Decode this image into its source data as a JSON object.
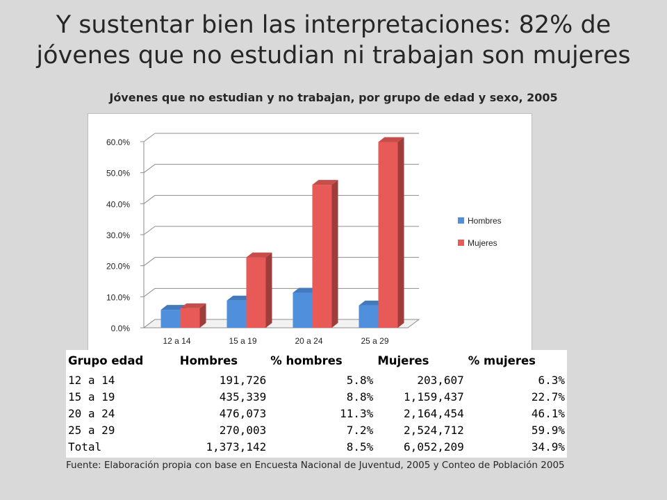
{
  "slide": {
    "title": "Y sustentar bien las interpretaciones: 82% de jóvenes que no estudian ni trabajan son mujeres",
    "chart_heading": "Jóvenes que no estudian y no trabajan, por grupo de edad y sexo, 2005",
    "source_note": "Fuente: Elaboración propia con base en Encuesta Nacional de Juventud, 2005 y Conteo de Población  2005"
  },
  "chart_data": {
    "type": "bar",
    "categories": [
      "12 a 14",
      "15 a 19",
      "20 a 24",
      "25 a 29"
    ],
    "series": [
      {
        "name": "Hombres",
        "values": [
          5.8,
          8.8,
          11.3,
          7.2
        ],
        "color": "#4f8fdc"
      },
      {
        "name": "Mujeres",
        "values": [
          6.3,
          22.7,
          46.1,
          59.9
        ],
        "color": "#e85a57"
      }
    ],
    "y_ticks": [
      "0.0%",
      "10.0%",
      "20.0%",
      "30.0%",
      "40.0%",
      "50.0%",
      "60.0%"
    ],
    "ylim": [
      0,
      60
    ],
    "grid": true,
    "legend": "right",
    "style": "3d-column"
  },
  "table": {
    "headers": [
      "Grupo edad",
      "Hombres",
      "% hombres",
      "Mujeres",
      "% mujeres"
    ],
    "rows": [
      [
        "12 a 14",
        "191,726",
        "5.8%",
        "203,607",
        "6.3%"
      ],
      [
        "15 a 19",
        "435,339",
        "8.8%",
        "1,159,437",
        "22.7%"
      ],
      [
        "20 a 24",
        "476,073",
        "11.3%",
        "2,164,454",
        "46.1%"
      ],
      [
        "25 a 29",
        "270,003",
        "7.2%",
        "2,524,712",
        "59.9%"
      ],
      [
        "Total",
        "1,373,142",
        "8.5%",
        "6,052,209",
        "34.9%"
      ]
    ]
  }
}
